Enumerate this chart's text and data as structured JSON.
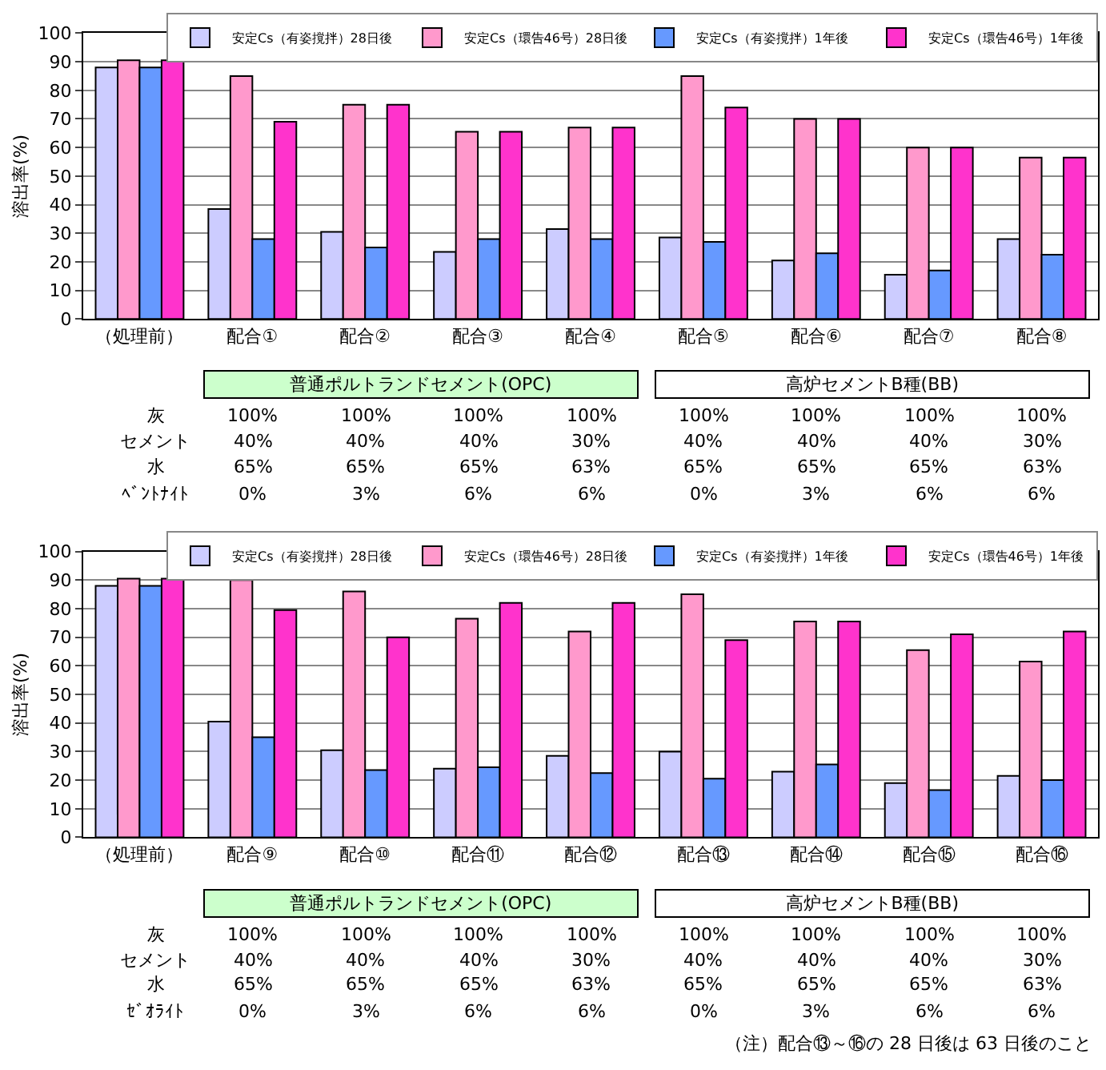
{
  "chart_data": [
    {
      "type": "bar",
      "categories": [
        "（処理前）",
        "配合①",
        "配合②",
        "配合③",
        "配合④",
        "配合⑤",
        "配合⑥",
        "配合⑦",
        "配合⑧"
      ],
      "ylabel": "溶出率(%)",
      "ylim": [
        0,
        100
      ],
      "yticks": [
        0,
        10,
        20,
        30,
        40,
        50,
        60,
        70,
        80,
        90,
        100
      ],
      "grid": "y",
      "legend": "top right",
      "series": [
        {
          "name": "安定Cs（有姿撹拌）28日後",
          "color": "#ccccff",
          "values": [
            88,
            38.5,
            30.5,
            23.5,
            31.5,
            28.5,
            20.5,
            15.5,
            28
          ]
        },
        {
          "name": "安定Cs（環告46号）28日後",
          "color": "#ff99cc",
          "values": [
            90.5,
            85,
            75,
            65.5,
            67,
            85,
            70,
            60,
            56.5
          ]
        },
        {
          "name": "安定Cs（有姿撹拌）1年後",
          "color": "#6699ff",
          "values": [
            88,
            28,
            25,
            28,
            28,
            27,
            23,
            17,
            22.5
          ]
        },
        {
          "name": "安定Cs（環告46号）1年後",
          "color": "#ff33cc",
          "values": [
            90.5,
            69,
            75,
            65.5,
            67,
            74,
            70,
            60,
            56.5
          ]
        }
      ],
      "annotations": [
        "普通ポルトランドセメント(OPC)",
        "高炉セメントB種(BB)",
        "灰",
        "セメント",
        "水",
        "ﾍﾞﾝﾄﾅｲﾄ",
        "100%",
        "100%",
        "100%",
        "100%",
        "100%",
        "100%",
        "100%",
        "100%",
        "40%",
        "40%",
        "40%",
        "30%",
        "40%",
        "40%",
        "40%",
        "30%",
        "65%",
        "65%",
        "65%",
        "63%",
        "65%",
        "65%",
        "65%",
        "63%",
        "0%",
        "3%",
        "6%",
        "6%",
        "0%",
        "3%",
        "6%",
        "6%"
      ]
    },
    {
      "type": "bar",
      "categories": [
        "（処理前）",
        "配合⑨",
        "配合⑩",
        "配合⑪",
        "配合⑫",
        "配合⑬",
        "配合⑭",
        "配合⑮",
        "配合⑯"
      ],
      "ylabel": "溶出率(%)",
      "ylim": [
        0,
        100
      ],
      "yticks": [
        0,
        10,
        20,
        30,
        40,
        50,
        60,
        70,
        80,
        90,
        100
      ],
      "grid": "y",
      "legend": "top right",
      "series": [
        {
          "name": "安定Cs（有姿撹拌）28日後",
          "color": "#ccccff",
          "values": [
            88,
            40.5,
            30.5,
            24,
            28.5,
            30,
            23,
            19,
            21.5
          ]
        },
        {
          "name": "安定Cs（環告46号）28日後",
          "color": "#ff99cc",
          "values": [
            90.5,
            90,
            86,
            76.5,
            72,
            85,
            75.5,
            65.5,
            61.5
          ]
        },
        {
          "name": "安定Cs（有姿撹拌）1年後",
          "color": "#6699ff",
          "values": [
            88,
            35,
            23.5,
            24.5,
            22.5,
            20.5,
            25.5,
            16.5,
            20
          ]
        },
        {
          "name": "安定Cs（環告46号）1年後",
          "color": "#ff33cc",
          "values": [
            90.5,
            79.5,
            70,
            82,
            82,
            69,
            75.5,
            71,
            72
          ]
        }
      ],
      "annotations": [
        "普通ポルトランドセメント(OPC)",
        "高炉セメントB種(BB)",
        "灰",
        "セメント",
        "水",
        "ｾﾞｵﾗｲﾄ",
        "100%",
        "100%",
        "100%",
        "100%",
        "100%",
        "100%",
        "100%",
        "100%",
        "40%",
        "40%",
        "40%",
        "30%",
        "40%",
        "40%",
        "40%",
        "30%",
        "65%",
        "65%",
        "65%",
        "63%",
        "65%",
        "65%",
        "65%",
        "63%",
        "0%",
        "3%",
        "6%",
        "6%",
        "0%",
        "3%",
        "6%",
        "6%",
        "（注）配合⑬～⑯の 28 日後は 63 日後のこと"
      ]
    }
  ]
}
